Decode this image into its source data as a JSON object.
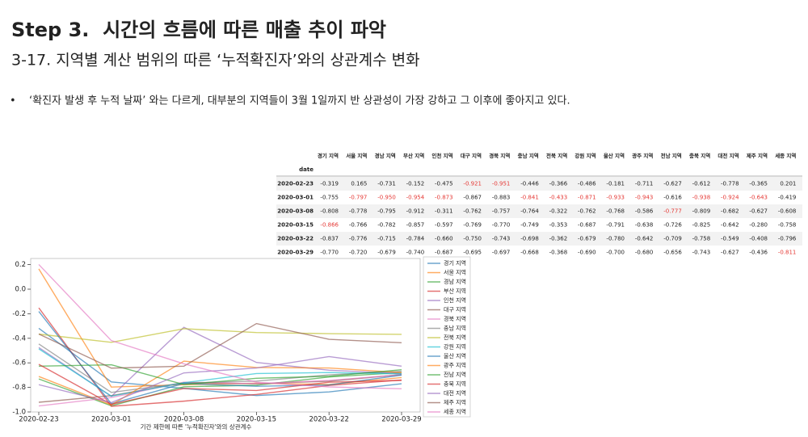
{
  "header": {
    "title": "Step 3.  시간의 흐름에 따른 매출 추이 파악",
    "subtitle": "3-17. 지역별 계산 범위의 따른 ‘누적확진자’와의 상관계수 변화"
  },
  "bullets": [
    "‘확진자 발생 후 누적 날짜’ 와는 다르게, 대부분의 지역들이 3월 1일까지 반 상관성이 가장 강하고 그 이후에 좋아지고 있다."
  ],
  "table": {
    "index_name": "date",
    "highlight_color": "#e53935",
    "highlight_rows": [
      3,
      1,
      1,
      1,
      1,
      0,
      0,
      1,
      1,
      1,
      1,
      1,
      2,
      1,
      1,
      1,
      5
    ]
  },
  "chart_data": {
    "type": "line",
    "xlabel": "기간 제한에 따른 '누적확진자'와의 상관계수",
    "categories": [
      "2020-02-23",
      "2020-03-01",
      "2020-03-08",
      "2020-03-15",
      "2020-03-22",
      "2020-03-29"
    ],
    "ylim": [
      -1.0,
      0.25
    ],
    "yticks": [
      {
        "value": -1.0,
        "label": "-1.0"
      },
      -0.8,
      -0.6,
      -0.4,
      -0.2,
      {
        "value": 0,
        "label": "0.0"
      },
      0.2
    ],
    "legend": "right-outside",
    "opacity": 0.65,
    "series": [
      {
        "name": "경기 지역",
        "color": "#1f77b4",
        "values": [
          -0.319,
          -0.755,
          -0.808,
          -0.866,
          -0.837,
          -0.77
        ],
        "value_labels": [
          "-0.319",
          "-0.755",
          "-0.808",
          "-0.866",
          "-0.837",
          "-0.770"
        ]
      },
      {
        "name": "서울 지역",
        "color": "#ff7f0e",
        "values": [
          0.165,
          -0.797,
          -0.778,
          -0.766,
          -0.776,
          -0.72
        ],
        "value_labels": [
          "0.165",
          "-0.797",
          "-0.778",
          "-0.766",
          "-0.776",
          "-0.720"
        ]
      },
      {
        "name": "경남 지역",
        "color": "#2ca02c",
        "values": [
          -0.731,
          -0.95,
          -0.795,
          -0.782,
          -0.715,
          -0.679
        ],
        "value_labels": [
          "-0.731",
          "-0.950",
          "-0.795",
          "-0.782",
          "-0.715",
          "-0.679"
        ]
      },
      {
        "name": "부산 지역",
        "color": "#d62728",
        "values": [
          -0.152,
          -0.954,
          -0.912,
          -0.857,
          -0.784,
          -0.74
        ],
        "value_labels": [
          "-0.152",
          "-0.954",
          "-0.912",
          "-0.857",
          "-0.784",
          "-0.740"
        ]
      },
      {
        "name": "인천 지역",
        "color": "#9467bd",
        "values": [
          -0.475,
          -0.873,
          -0.311,
          -0.597,
          -0.66,
          -0.687
        ],
        "value_labels": [
          "-0.475",
          "-0.873",
          "-0.311",
          "-0.597",
          "-0.660",
          "-0.687"
        ]
      },
      {
        "name": "대구 지역",
        "color": "#8c564b",
        "values": [
          -0.921,
          -0.867,
          -0.762,
          -0.769,
          -0.75,
          -0.695
        ],
        "value_labels": [
          "-0.921",
          "-0.867",
          "-0.762",
          "-0.769",
          "-0.750",
          "-0.695"
        ]
      },
      {
        "name": "경북 지역",
        "color": "#e377c2",
        "values": [
          -0.951,
          -0.883,
          -0.757,
          -0.77,
          -0.743,
          -0.697
        ],
        "value_labels": [
          "-0.951",
          "-0.883",
          "-0.757",
          "-0.770",
          "-0.743",
          "-0.697"
        ]
      },
      {
        "name": "충남 지역",
        "color": "#7f7f7f",
        "values": [
          -0.446,
          -0.841,
          -0.764,
          -0.749,
          -0.698,
          -0.668
        ],
        "value_labels": [
          "-0.446",
          "-0.841",
          "-0.764",
          "-0.749",
          "-0.698",
          "-0.668"
        ]
      },
      {
        "name": "전북 지역",
        "color": "#bcbd22",
        "values": [
          -0.366,
          -0.433,
          -0.322,
          -0.353,
          -0.362,
          -0.368
        ],
        "value_labels": [
          "-0.366",
          "-0.433",
          "-0.322",
          "-0.353",
          "-0.362",
          "-0.368"
        ]
      },
      {
        "name": "강원 지역",
        "color": "#17becf",
        "values": [
          -0.486,
          -0.871,
          -0.762,
          -0.687,
          -0.679,
          -0.69
        ],
        "value_labels": [
          "-0.486",
          "-0.871",
          "-0.762",
          "-0.687",
          "-0.679",
          "-0.690"
        ]
      },
      {
        "name": "울산 지역",
        "color": "#1f77b4",
        "values": [
          -0.181,
          -0.933,
          -0.768,
          -0.791,
          -0.78,
          -0.7
        ],
        "value_labels": [
          "-0.181",
          "-0.933",
          "-0.768",
          "-0.791",
          "-0.780",
          "-0.700"
        ]
      },
      {
        "name": "광주 지역",
        "color": "#ff7f0e",
        "values": [
          -0.711,
          -0.943,
          -0.586,
          -0.638,
          -0.642,
          -0.68
        ],
        "value_labels": [
          "-0.711",
          "-0.943",
          "-0.586",
          "-0.638",
          "-0.642",
          "-0.680"
        ]
      },
      {
        "name": "전남 지역",
        "color": "#2ca02c",
        "values": [
          -0.627,
          -0.616,
          -0.777,
          -0.726,
          -0.709,
          -0.656
        ],
        "value_labels": [
          "-0.627",
          "-0.616",
          "-0.777",
          "-0.726",
          "-0.709",
          "-0.656"
        ]
      },
      {
        "name": "충북 지역",
        "color": "#d62728",
        "values": [
          -0.612,
          -0.938,
          -0.809,
          -0.825,
          -0.758,
          -0.743
        ],
        "value_labels": [
          "-0.612",
          "-0.938",
          "-0.809",
          "-0.825",
          "-0.758",
          "-0.743"
        ]
      },
      {
        "name": "대전 지역",
        "color": "#9467bd",
        "values": [
          -0.778,
          -0.924,
          -0.682,
          -0.642,
          -0.549,
          -0.627
        ],
        "value_labels": [
          "-0.778",
          "-0.924",
          "-0.682",
          "-0.642",
          "-0.549",
          "-0.627"
        ]
      },
      {
        "name": "제주 지역",
        "color": "#8c564b",
        "values": [
          -0.365,
          -0.643,
          -0.627,
          -0.28,
          -0.408,
          -0.436
        ],
        "value_labels": [
          "-0.365",
          "-0.643",
          "-0.627",
          "-0.280",
          "-0.408",
          "-0.436"
        ]
      },
      {
        "name": "세종 지역",
        "color": "#e377c2",
        "values": [
          0.201,
          -0.419,
          -0.608,
          -0.758,
          -0.796,
          -0.811
        ],
        "value_labels": [
          "0.201",
          "-0.419",
          "-0.608",
          "-0.758",
          "-0.796",
          "-0.811"
        ]
      }
    ]
  }
}
